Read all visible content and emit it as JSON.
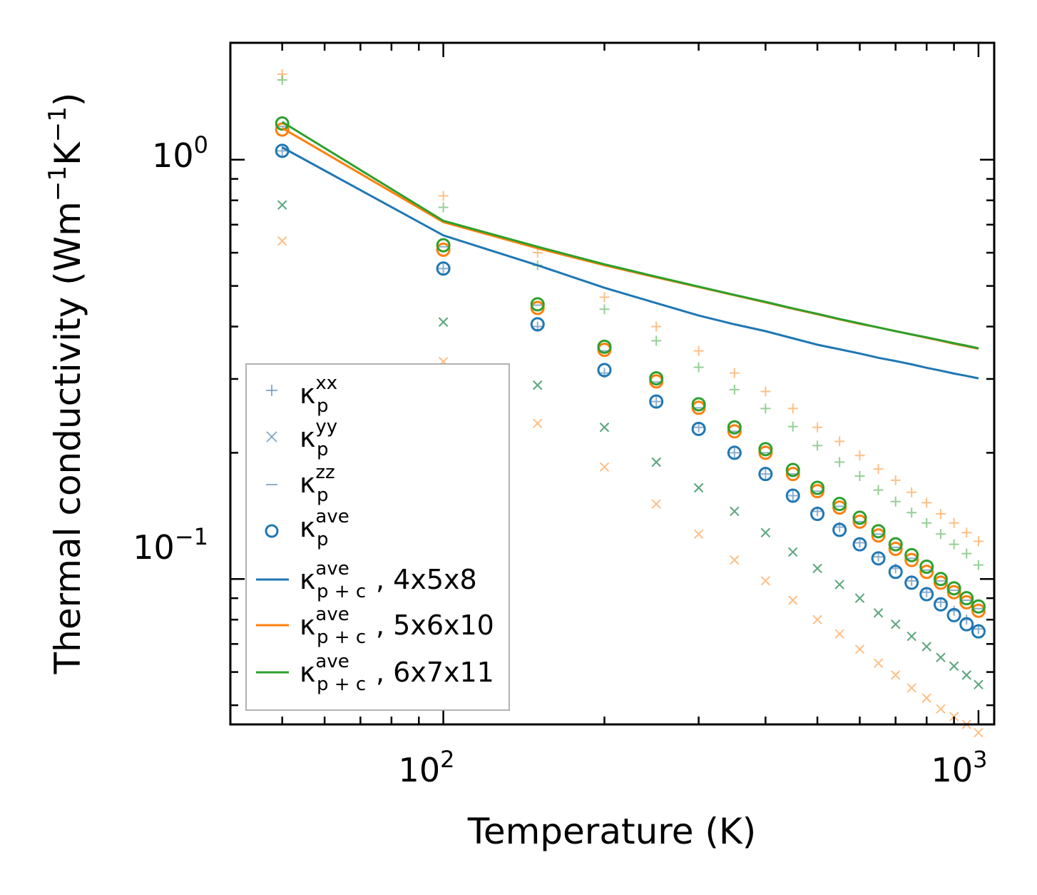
{
  "chart_data": {
    "type": "scatter",
    "scale": "log-log",
    "title": "",
    "xlabel": "Temperature (K)",
    "ylabel": "Thermal conductivity (Wm",
    "ylabel_sup1": "−1",
    "ylabel_mid": "K",
    "ylabel_sup2": "−1",
    "ylabel_end": ")",
    "xlim": [
      40,
      1070
    ],
    "ylim": [
      0.045,
      1.9
    ],
    "x_ticks": [
      {
        "base": "10",
        "exp": "2",
        "value": 100
      },
      {
        "base": "10",
        "exp": "3",
        "value": 1000
      }
    ],
    "y_ticks": [
      {
        "base": "10",
        "exp": "0",
        "value": 1
      },
      {
        "base": "10",
        "exp": "−1",
        "value": 0.1
      }
    ],
    "x": [
      50,
      100,
      150,
      200,
      250,
      300,
      350,
      400,
      450,
      500,
      550,
      600,
      650,
      700,
      750,
      800,
      850,
      900,
      950,
      1000
    ],
    "series": [
      {
        "name": "kxx_p",
        "label_sym": "κ",
        "label_sub": "p",
        "label_sup": "xx",
        "kind": "marker",
        "marker": "plus",
        "color": "#5B8DB8",
        "alpha": 0.7,
        "values": [
          1.05,
          0.55,
          0.4,
          0.31,
          0.265,
          0.23,
          0.2,
          0.178,
          0.158,
          0.145,
          0.133,
          0.122,
          0.113,
          0.106,
          0.099,
          0.093,
          0.088,
          0.084,
          0.08,
          0.076
        ]
      },
      {
        "name": "kyy_p",
        "label_sym": "κ",
        "label_sub": "p",
        "label_sup": "yy",
        "kind": "marker",
        "marker": "x",
        "color": "#5B8DB8",
        "alpha": 0.7,
        "values": [
          0.78,
          0.41,
          0.29,
          0.23,
          0.19,
          0.165,
          0.145,
          0.129,
          0.116,
          0.106,
          0.097,
          0.09,
          0.083,
          0.078,
          0.073,
          0.069,
          0.065,
          0.062,
          0.059,
          0.056
        ]
      },
      {
        "name": "kzz_p",
        "label_sym": "κ",
        "label_sub": "p",
        "label_sup": "zz",
        "kind": "marker",
        "marker": "dash",
        "color": "#5B8DB8",
        "alpha": 0.7,
        "values": [
          1.2,
          0.62,
          0.45,
          0.35,
          0.295,
          0.256,
          0.225,
          0.2,
          0.178,
          0.162,
          0.149,
          0.137,
          0.128,
          0.119,
          0.112,
          0.105,
          0.099,
          0.094,
          0.089,
          0.085
        ]
      },
      {
        "name": "kave_p",
        "label_sym": "κ",
        "label_sub": "p",
        "label_sup": "ave",
        "kind": "marker",
        "marker": "circle",
        "color": "#1f77b4",
        "alpha": 1,
        "values": [
          1.05,
          0.55,
          0.405,
          0.315,
          0.265,
          0.228,
          0.2,
          0.178,
          0.158,
          0.143,
          0.131,
          0.121,
          0.112,
          0.104,
          0.098,
          0.092,
          0.087,
          0.082,
          0.078,
          0.075
        ]
      },
      {
        "name": "kxx_p_5x6x10",
        "kind": "marker",
        "marker": "plus",
        "color": "#ff7f0e",
        "alpha": 0.5,
        "in_legend": false,
        "values": [
          1.6,
          0.82,
          0.6,
          0.47,
          0.4,
          0.35,
          0.31,
          0.28,
          0.255,
          0.23,
          0.213,
          0.197,
          0.183,
          0.172,
          0.161,
          0.152,
          0.143,
          0.136,
          0.129,
          0.123
        ]
      },
      {
        "name": "kyy_p_5x6x10",
        "kind": "marker",
        "marker": "x",
        "color": "#ff7f0e",
        "alpha": 0.5,
        "in_legend": false,
        "values": [
          0.64,
          0.33,
          0.235,
          0.185,
          0.151,
          0.128,
          0.111,
          0.099,
          0.089,
          0.08,
          0.074,
          0.068,
          0.063,
          0.059,
          0.055,
          0.052,
          0.049,
          0.047,
          0.045,
          0.043
        ]
      },
      {
        "name": "kave_p_5x6x10",
        "kind": "marker",
        "marker": "circle",
        "color": "#ff7f0e",
        "alpha": 1,
        "in_legend": false,
        "values": [
          1.18,
          0.61,
          0.443,
          0.352,
          0.296,
          0.256,
          0.225,
          0.2,
          0.178,
          0.162,
          0.148,
          0.137,
          0.127,
          0.118,
          0.111,
          0.104,
          0.098,
          0.093,
          0.088,
          0.084
        ]
      },
      {
        "name": "kxx_p_6x7x11",
        "kind": "marker",
        "marker": "plus",
        "color": "#2ca02c",
        "alpha": 0.5,
        "in_legend": false,
        "values": [
          1.55,
          0.77,
          0.56,
          0.44,
          0.37,
          0.32,
          0.283,
          0.255,
          0.231,
          0.208,
          0.19,
          0.176,
          0.163,
          0.153,
          0.144,
          0.136,
          0.128,
          0.121,
          0.115,
          0.108
        ]
      },
      {
        "name": "kyy_p_6x7x11",
        "kind": "marker",
        "marker": "x",
        "color": "#2ca02c",
        "alpha": 0.5,
        "in_legend": false,
        "values": [
          0.78,
          0.41,
          0.29,
          0.23,
          0.19,
          0.165,
          0.145,
          0.129,
          0.116,
          0.106,
          0.097,
          0.09,
          0.083,
          0.078,
          0.073,
          0.069,
          0.065,
          0.062,
          0.059,
          0.056
        ]
      },
      {
        "name": "kave_p_6x7x11",
        "kind": "marker",
        "marker": "circle",
        "color": "#2ca02c",
        "alpha": 1,
        "in_legend": false,
        "values": [
          1.22,
          0.625,
          0.452,
          0.358,
          0.301,
          0.261,
          0.23,
          0.204,
          0.182,
          0.165,
          0.151,
          0.14,
          0.13,
          0.121,
          0.114,
          0.107,
          0.1,
          0.095,
          0.09,
          0.086
        ]
      },
      {
        "name": "kave_pc_4x5x8",
        "label_sym": "κ",
        "label_sub": "p + c",
        "label_sup": "ave",
        "label_tail": ", 4x5x8",
        "kind": "line",
        "color": "#1f77b4",
        "values": [
          1.07,
          0.66,
          0.56,
          0.495,
          0.455,
          0.425,
          0.405,
          0.39,
          0.375,
          0.362,
          0.353,
          0.345,
          0.337,
          0.331,
          0.325,
          0.319,
          0.314,
          0.309,
          0.305,
          0.301
        ]
      },
      {
        "name": "kave_pc_5x6x10",
        "label_sym": "κ",
        "label_sub": "p + c",
        "label_sup": "ave",
        "label_tail": ", 5x6x10",
        "kind": "line",
        "color": "#ff7f0e",
        "values": [
          1.19,
          0.71,
          0.615,
          0.56,
          0.524,
          0.497,
          0.475,
          0.457,
          0.441,
          0.428,
          0.416,
          0.406,
          0.398,
          0.39,
          0.383,
          0.376,
          0.37,
          0.364,
          0.359,
          0.354
        ]
      },
      {
        "name": "kave_pc_6x7x11",
        "label_sym": "κ",
        "label_sub": "p + c",
        "label_sup": "ave",
        "label_tail": ", 6x7x11",
        "kind": "line",
        "color": "#2ca02c",
        "values": [
          1.23,
          0.715,
          0.62,
          0.563,
          0.526,
          0.498,
          0.476,
          0.458,
          0.442,
          0.429,
          0.417,
          0.407,
          0.398,
          0.39,
          0.383,
          0.377,
          0.371,
          0.365,
          0.36,
          0.355
        ]
      }
    ],
    "legend_position": "lower-left"
  }
}
